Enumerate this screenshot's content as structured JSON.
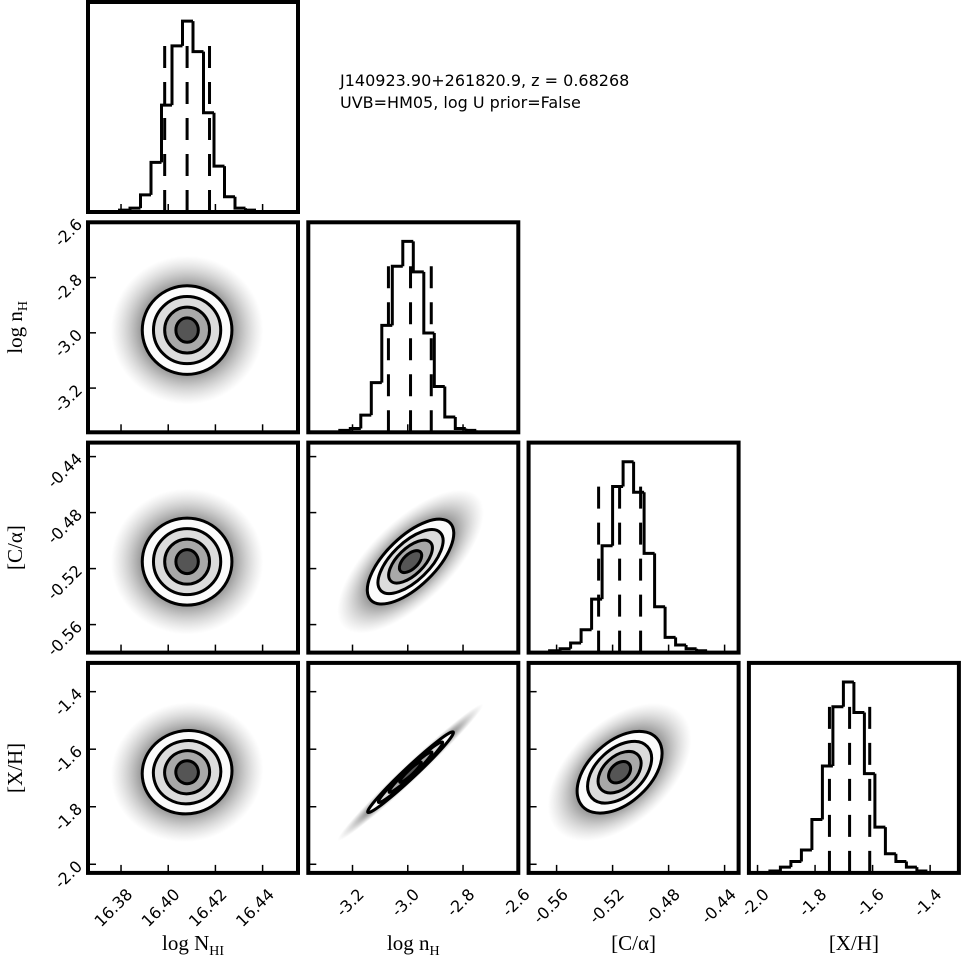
{
  "chart_data": {
    "type": "corner",
    "title_lines": [
      "J140923.90+261820.9, z = 0.68268",
      "UVB=HM05, log U prior=False"
    ],
    "hist_ylim": [
      0,
      110
    ],
    "params": [
      {
        "label": "log N",
        "label_sub": "HI",
        "lim": [
          16.366,
          16.455
        ],
        "ticks": [
          16.38,
          {
            "value": 16.4,
            "label": "16.40"
          },
          16.42,
          16.44
        ],
        "bins": [
          16.366,
          16.37045,
          16.3749,
          16.37935,
          16.3838,
          16.38825,
          16.3927,
          16.39715,
          16.4016,
          16.40605,
          16.4105,
          16.41495,
          16.4194,
          16.42385,
          16.4283,
          16.43275,
          16.4372,
          16.44165,
          16.4461,
          16.45055,
          16.455
        ],
        "counts": [
          0,
          0,
          0,
          1,
          2,
          9,
          26,
          56,
          87,
          100,
          84,
          52,
          24,
          8,
          2,
          1,
          0,
          0,
          0,
          0
        ],
        "quantiles": [
          16.3985,
          16.408,
          16.4175
        ]
      },
      {
        "label": "log n",
        "label_sub": "H",
        "lim": [
          -3.36,
          -2.6
        ],
        "ticks": [
          -3.2,
          {
            "value": -3,
            "label": "-3.0"
          },
          -2.8,
          -2.6
        ],
        "bins": [
          -3.36,
          -3.322,
          -3.284,
          -3.246,
          -3.208,
          -3.17,
          -3.132,
          -3.094,
          -3.056,
          -3.018,
          -2.98,
          -2.942,
          -2.904,
          -2.866,
          -2.828,
          -2.79,
          -2.752,
          -2.714,
          -2.676,
          -2.638,
          -2.6
        ],
        "counts": [
          0,
          0,
          0,
          1,
          2,
          9,
          26,
          56,
          87,
          100,
          84,
          52,
          24,
          8,
          2,
          1,
          0,
          0,
          0,
          0
        ],
        "quantiles": [
          -3.07,
          -2.99,
          -2.915
        ]
      },
      {
        "label": "[C/α]",
        "lim": [
          -0.58,
          -0.43
        ],
        "ticks": [
          -0.56,
          -0.52,
          -0.48,
          -0.44
        ],
        "bins": [
          -0.58,
          -0.5725,
          -0.565,
          -0.5575,
          -0.55,
          -0.5425,
          -0.535,
          -0.5275,
          -0.52,
          -0.5125,
          -0.505,
          -0.4975,
          -0.49,
          -0.4825,
          -0.475,
          -0.4675,
          -0.46,
          -0.4525,
          -0.445,
          -0.4375,
          -0.43
        ],
        "counts": [
          0,
          0,
          1,
          2,
          5,
          12,
          28,
          56,
          87,
          100,
          84,
          52,
          24,
          8,
          4,
          2,
          1,
          0,
          0,
          0
        ],
        "quantiles": [
          -0.53,
          -0.515,
          -0.5
        ]
      },
      {
        "label": "[X/H]",
        "lim": [
          -2.03,
          -1.3
        ],
        "ticks": [
          {
            "value": -2,
            "label": "-2.0"
          },
          -1.8,
          -1.6,
          -1.4
        ],
        "bins": [
          -2.03,
          -1.9935,
          -1.957,
          -1.9205,
          -1.884,
          -1.8475,
          -1.811,
          -1.7745,
          -1.738,
          -1.7015,
          -1.665,
          -1.6285,
          -1.592,
          -1.5555,
          -1.519,
          -1.4825,
          -1.446,
          -1.4095,
          -1.373,
          -1.3365,
          -1.3
        ],
        "counts": [
          0,
          0,
          1,
          3,
          6,
          12,
          28,
          56,
          87,
          100,
          84,
          52,
          24,
          10,
          6,
          3,
          1,
          0,
          0,
          0
        ],
        "quantiles": [
          -1.75,
          -1.68,
          -1.61
        ]
      }
    ],
    "pairs": [
      {
        "x": 0,
        "y": 1,
        "correlation": 0
      },
      {
        "x": 0,
        "y": 2,
        "correlation": 0
      },
      {
        "x": 1,
        "y": 2,
        "correlation": 0.7
      },
      {
        "x": 0,
        "y": 3,
        "correlation": 0.05
      },
      {
        "x": 1,
        "y": 3,
        "correlation": 0.99
      },
      {
        "x": 2,
        "y": 3,
        "correlation": 0.5
      }
    ]
  }
}
